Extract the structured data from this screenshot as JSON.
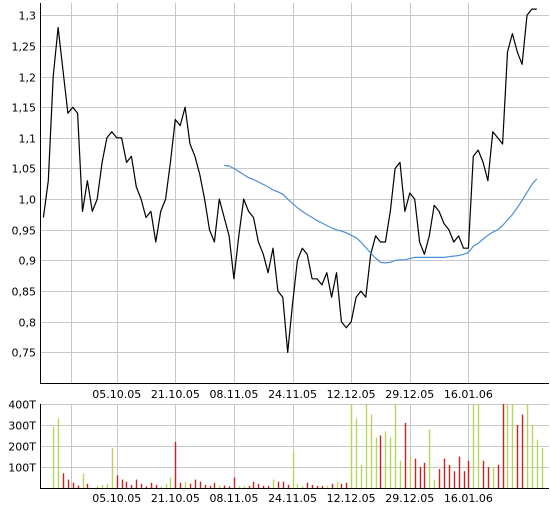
{
  "chart_data": [
    {
      "type": "line",
      "panel": "price",
      "title": "",
      "xlabel": "",
      "ylabel": "",
      "ylim": [
        0.7,
        1.32
      ],
      "grid": true,
      "y_ticks": [
        {
          "value": 0.75,
          "label": "0,75"
        },
        {
          "value": 0.8,
          "label": "0,8"
        },
        {
          "value": 0.85,
          "label": "0,85"
        },
        {
          "value": 0.9,
          "label": "0,9"
        },
        {
          "value": 0.95,
          "label": "0,95"
        },
        {
          "value": 1.0,
          "label": "1,0"
        },
        {
          "value": 1.05,
          "label": "1,05"
        },
        {
          "value": 1.1,
          "label": "1,1"
        },
        {
          "value": 1.15,
          "label": "1,15"
        },
        {
          "value": 1.2,
          "label": "1,2"
        },
        {
          "value": 1.25,
          "label": "1,25"
        },
        {
          "value": 1.3,
          "label": "1,3"
        }
      ],
      "x_ticks": [
        {
          "index": 15,
          "label": "05.10.05"
        },
        {
          "index": 27,
          "label": "21.10.05"
        },
        {
          "index": 39,
          "label": "08.11.05"
        },
        {
          "index": 51,
          "label": "24.11.05"
        },
        {
          "index": 63,
          "label": "12.12.05"
        },
        {
          "index": 75,
          "label": "29.12.05"
        },
        {
          "index": 87,
          "label": "16.01.06"
        }
      ],
      "x_count": 104,
      "series": [
        {
          "color": "#000000",
          "values": [
            0.97,
            1.03,
            1.2,
            1.28,
            1.21,
            1.14,
            1.15,
            1.14,
            0.98,
            1.03,
            0.98,
            1.0,
            1.06,
            1.1,
            1.11,
            1.1,
            1.1,
            1.06,
            1.07,
            1.02,
            1.0,
            0.97,
            0.98,
            0.93,
            0.98,
            1.0,
            1.06,
            1.13,
            1.12,
            1.15,
            1.09,
            1.07,
            1.04,
            1.0,
            0.95,
            0.93,
            1.0,
            0.97,
            0.94,
            0.87,
            0.94,
            1.0,
            0.98,
            0.97,
            0.93,
            0.91,
            0.88,
            0.92,
            0.85,
            0.84,
            0.75,
            0.83,
            0.9,
            0.92,
            0.91,
            0.87,
            0.87,
            0.86,
            0.88,
            0.84,
            0.88,
            0.8,
            0.79,
            0.8,
            0.84,
            0.85,
            0.84,
            0.91,
            0.94,
            0.93,
            0.93,
            0.98,
            1.05,
            1.06,
            0.98,
            1.01,
            1.0,
            0.93,
            0.91,
            0.94,
            0.99,
            0.98,
            0.96,
            0.95,
            0.93,
            0.94,
            0.92,
            0.92,
            1.07,
            1.08,
            1.06,
            1.03,
            1.11,
            1.1,
            1.09,
            1.24,
            1.27,
            1.24,
            1.22,
            1.3,
            1.31,
            1.31,
            null,
            null
          ]
        },
        {
          "color": "#4a90d9",
          "values": [
            null,
            null,
            null,
            null,
            null,
            null,
            null,
            null,
            null,
            null,
            null,
            null,
            null,
            null,
            null,
            null,
            null,
            null,
            null,
            null,
            null,
            null,
            null,
            null,
            null,
            null,
            null,
            null,
            null,
            null,
            null,
            null,
            null,
            null,
            null,
            null,
            null,
            1.055,
            1.054,
            1.05,
            1.045,
            1.04,
            1.035,
            1.032,
            1.028,
            1.024,
            1.02,
            1.015,
            1.012,
            1.008,
            1.0,
            0.993,
            0.986,
            0.98,
            0.975,
            0.97,
            0.965,
            0.961,
            0.957,
            0.953,
            0.95,
            0.948,
            0.945,
            0.941,
            0.937,
            0.93,
            0.921,
            0.912,
            0.904,
            0.897,
            0.896,
            0.897,
            0.9,
            0.901,
            0.901,
            0.903,
            0.905,
            0.905,
            0.905,
            0.905,
            0.905,
            0.905,
            0.905,
            0.906,
            0.907,
            0.908,
            0.91,
            0.913,
            0.923,
            0.928,
            0.935,
            0.941,
            0.946,
            0.95,
            0.957,
            0.966,
            0.975,
            0.986,
            0.998,
            1.011,
            1.024,
            1.033,
            null,
            null
          ]
        }
      ]
    },
    {
      "type": "bar",
      "panel": "volume",
      "title": "",
      "xlabel": "",
      "ylabel": "",
      "ylim": [
        0,
        400000
      ],
      "grid": true,
      "y_ticks": [
        {
          "value": 100000,
          "label": "100T"
        },
        {
          "value": 200000,
          "label": "200T"
        },
        {
          "value": 300000,
          "label": "300T"
        },
        {
          "value": 400000,
          "label": "400T"
        }
      ],
      "x_ticks": [
        {
          "index": 15,
          "label": "05.10.05"
        },
        {
          "index": 27,
          "label": "21.10.05"
        },
        {
          "index": 39,
          "label": "08.11.05"
        },
        {
          "index": 51,
          "label": "24.11.05"
        },
        {
          "index": 63,
          "label": "12.12.05"
        },
        {
          "index": 75,
          "label": "29.12.05"
        },
        {
          "index": 87,
          "label": "16.01.06"
        }
      ],
      "x_count": 104,
      "colors": {
        "up": "#b5d65a",
        "down": "#cc2222"
      },
      "values": [
        0,
        0,
        290000,
        330000,
        70000,
        40000,
        25000,
        12000,
        70000,
        20000,
        0,
        10000,
        15000,
        20000,
        190000,
        60000,
        40000,
        30000,
        15000,
        40000,
        20000,
        8000,
        25000,
        15000,
        8000,
        20000,
        50000,
        220000,
        25000,
        30000,
        20000,
        40000,
        30000,
        15000,
        10000,
        25000,
        12000,
        12000,
        8000,
        50000,
        10000,
        10000,
        10000,
        30000,
        20000,
        10000,
        10000,
        40000,
        30000,
        30000,
        15000,
        175000,
        20000,
        10000,
        25000,
        15000,
        10000,
        10000,
        12000,
        20000,
        30000,
        20000,
        25000,
        410000,
        330000,
        110000,
        410000,
        350000,
        240000,
        250000,
        270000,
        240000,
        410000,
        130000,
        310000,
        150000,
        140000,
        100000,
        120000,
        280000,
        40000,
        90000,
        140000,
        110000,
        80000,
        150000,
        80000,
        130000,
        410000,
        410000,
        130000,
        100000,
        100000,
        110000,
        410000,
        410000,
        410000,
        300000,
        350000,
        400000,
        300000,
        230000,
        190000,
        0
      ],
      "directions": [
        "u",
        "u",
        "u",
        "u",
        "d",
        "d",
        "d",
        "d",
        "u",
        "d",
        "u",
        "u",
        "u",
        "u",
        "u",
        "d",
        "d",
        "d",
        "d",
        "d",
        "d",
        "d",
        "d",
        "d",
        "u",
        "u",
        "u",
        "d",
        "d",
        "u",
        "d",
        "d",
        "d",
        "d",
        "d",
        "d",
        "u",
        "d",
        "d",
        "d",
        "u",
        "u",
        "d",
        "d",
        "d",
        "d",
        "d",
        "u",
        "d",
        "d",
        "d",
        "u",
        "u",
        "u",
        "d",
        "d",
        "d",
        "d",
        "u",
        "d",
        "u",
        "d",
        "d",
        "u",
        "u",
        "u",
        "u",
        "u",
        "u",
        "d",
        "u",
        "u",
        "u",
        "u",
        "d",
        "u",
        "d",
        "d",
        "d",
        "u",
        "u",
        "d",
        "d",
        "d",
        "d",
        "d",
        "d",
        "d",
        "u",
        "u",
        "d",
        "d",
        "u",
        "d",
        "d",
        "u",
        "u",
        "d",
        "d",
        "u",
        "u",
        "u",
        "u",
        "u"
      ]
    }
  ]
}
